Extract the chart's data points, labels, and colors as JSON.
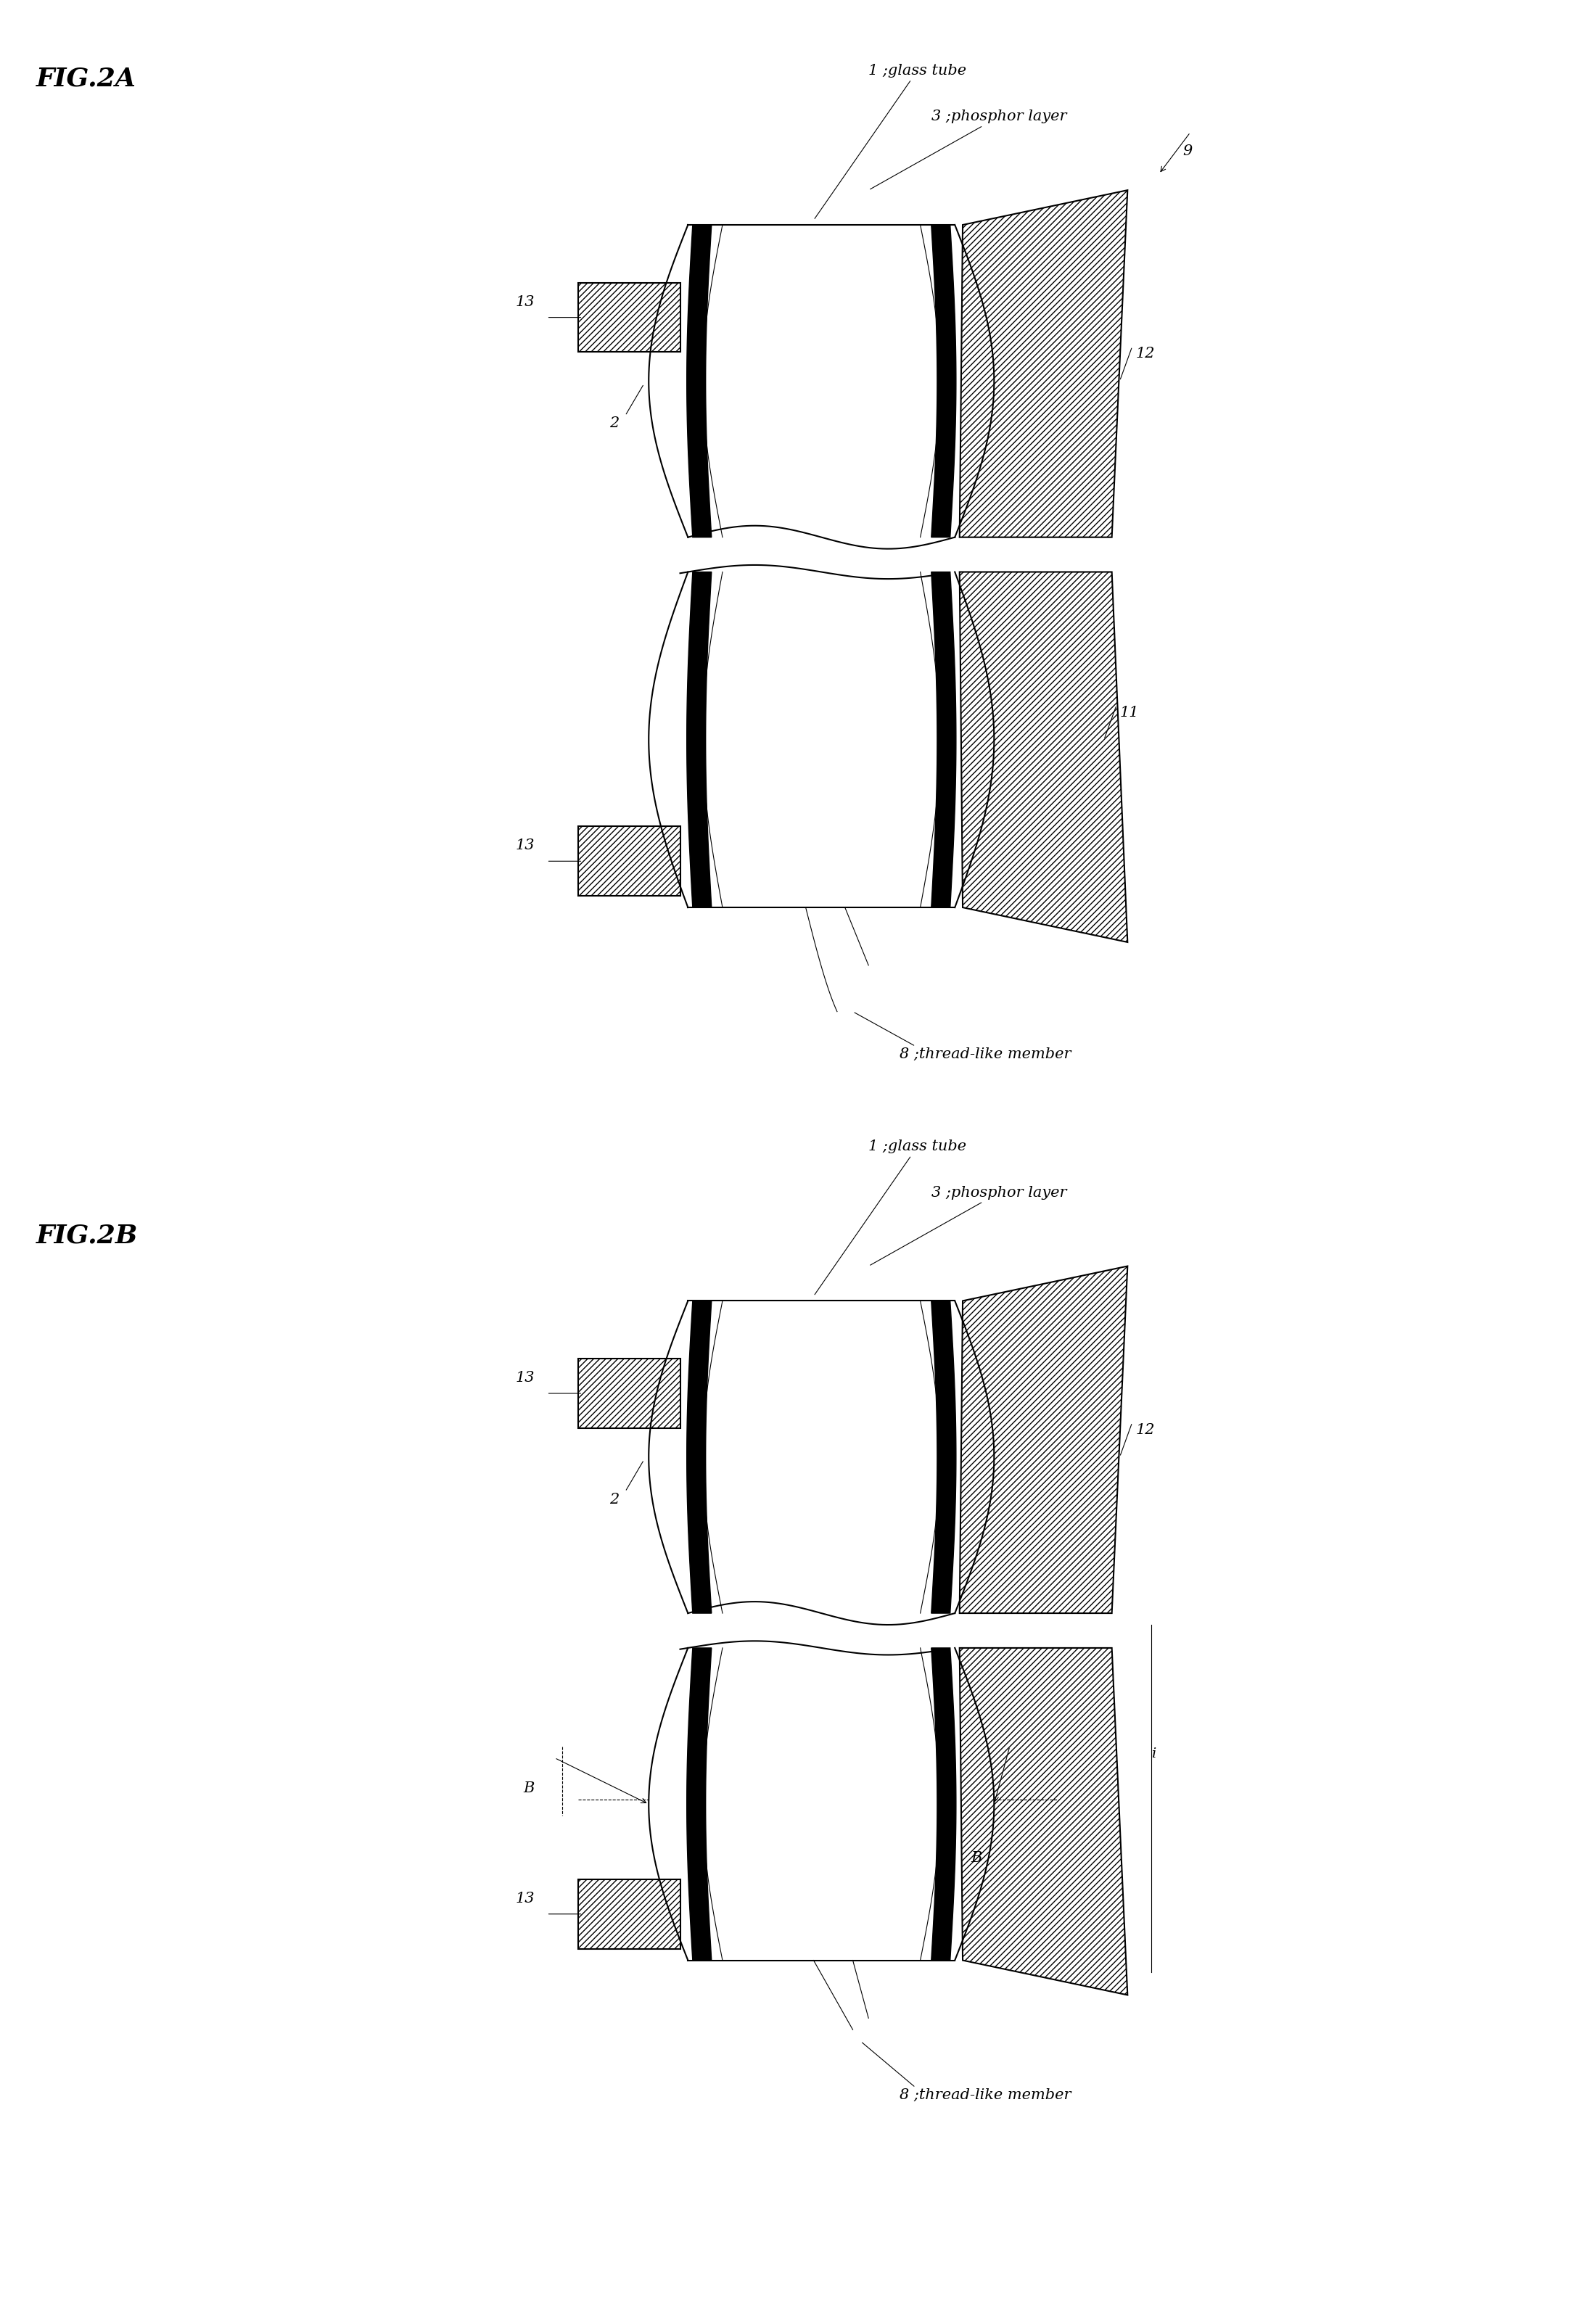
{
  "fig_width": 21.78,
  "fig_height": 32.04,
  "bg_color": "#ffffff",
  "line_color": "#000000",
  "hatch_color": "#555555",
  "fig2a_label": "FIG.2A",
  "fig2b_label": "FIG.2B",
  "label_1": "1 ;glass tube",
  "label_3": "3 ;phosphor layer",
  "label_2": "2",
  "label_8": "8 ;thread-like member",
  "label_9": "9",
  "label_11": "11",
  "label_12": "12",
  "label_13a": "13",
  "label_13b": "13",
  "label_B1": "B",
  "label_B2": "B",
  "label_i": "i"
}
